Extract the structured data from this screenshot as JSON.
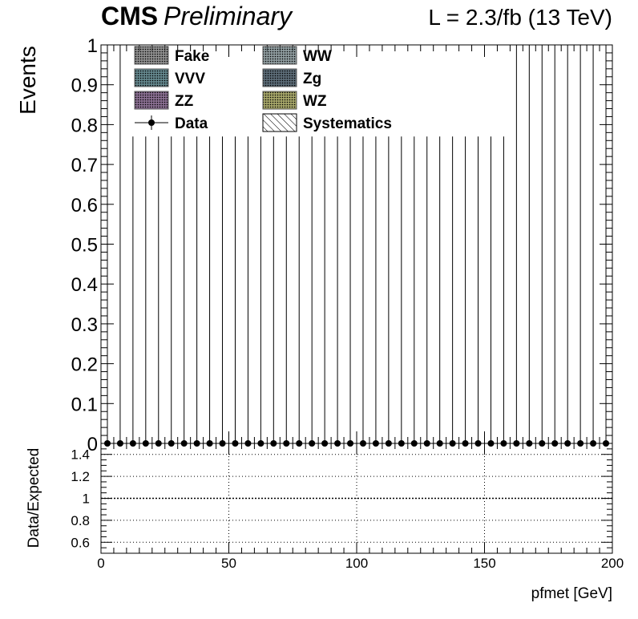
{
  "header": {
    "experiment": "CMS",
    "status": "Preliminary",
    "lumi": "L = 2.3/fb (13 TeV)"
  },
  "legend": [
    {
      "label": "Fake",
      "color": "#c0c0c0",
      "style": "box"
    },
    {
      "label": "WW",
      "color": "#bde3ec",
      "style": "box"
    },
    {
      "label": "VVV",
      "color": "#46a8b8",
      "style": "box"
    },
    {
      "label": "Zg",
      "color": "#2f5d7c",
      "style": "box"
    },
    {
      "label": "ZZ",
      "color": "#b066c8",
      "style": "box"
    },
    {
      "label": "WZ",
      "color": "#ffff55",
      "style": "box"
    },
    {
      "label": "Data",
      "color": "#000000",
      "style": "marker"
    },
    {
      "label": "Systematics",
      "color": "#ffffff",
      "style": "hatch"
    }
  ],
  "chart_data": [
    {
      "type": "scatter",
      "panel": "main",
      "ylabel": "Events",
      "xlim": [
        0,
        200
      ],
      "ylim": [
        0,
        1
      ],
      "y_ticks": [
        "0",
        "0.1",
        "0.2",
        "0.3",
        "0.4",
        "0.5",
        "0.6",
        "0.7",
        "0.8",
        "0.9",
        "1"
      ],
      "series": [
        {
          "name": "Data",
          "x": [
            2.5,
            7.5,
            12.5,
            17.5,
            22.5,
            27.5,
            32.5,
            37.5,
            42.5,
            47.5,
            52.5,
            57.5,
            62.5,
            67.5,
            72.5,
            77.5,
            82.5,
            87.5,
            92.5,
            97.5,
            102.5,
            107.5,
            112.5,
            117.5,
            122.5,
            127.5,
            132.5,
            137.5,
            142.5,
            147.5,
            152.5,
            157.5,
            162.5,
            167.5,
            172.5,
            177.5,
            182.5,
            187.5,
            192.5,
            197.5
          ],
          "y": [
            0,
            0,
            0,
            0,
            0,
            0,
            0,
            0,
            0,
            0,
            0,
            0,
            0,
            0,
            0,
            0,
            0,
            0,
            0,
            0,
            0,
            0,
            0,
            0,
            0,
            0,
            0,
            0,
            0,
            0,
            0,
            0,
            0,
            0,
            0,
            0,
            0,
            0,
            0,
            0
          ],
          "err_up": [
            1.15,
            1.15,
            0.77,
            0.77,
            0.77,
            0.77,
            0.77,
            0.77,
            0.77,
            0.77,
            0.77,
            0.77,
            0.77,
            0.77,
            0.77,
            0.77,
            0.77,
            0.77,
            0.77,
            0.77,
            0.77,
            0.77,
            0.77,
            0.77,
            0.77,
            0.77,
            0.77,
            0.77,
            0.77,
            0.77,
            0.77,
            0.77,
            1.15,
            1.15,
            1.15,
            1.15,
            1.15,
            1.15,
            1.15,
            1.15
          ]
        }
      ]
    },
    {
      "type": "scatter",
      "panel": "ratio",
      "xlabel": "pfmet [GeV]",
      "ylabel": "Data/Expected",
      "xlim": [
        0,
        200
      ],
      "ylim": [
        0.5,
        1.5
      ],
      "x_ticks": [
        "0",
        "50",
        "100",
        "150",
        "200"
      ],
      "y_ticks": [
        "0.6",
        "0.8",
        "1",
        "1.2",
        "1.4"
      ],
      "series": []
    }
  ]
}
